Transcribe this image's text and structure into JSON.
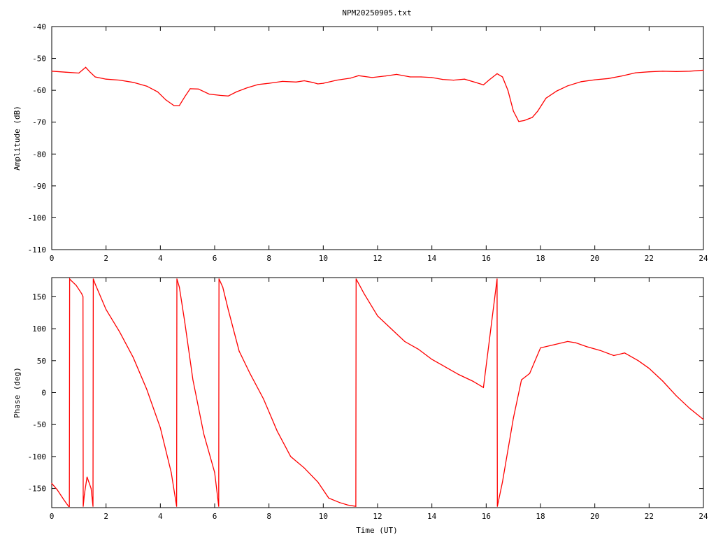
{
  "title": "NPM20250905.txt",
  "colors": {
    "series": "#ff0000",
    "axes": "#000000",
    "background": "#ffffff"
  },
  "chart_data": [
    {
      "type": "line",
      "ylabel": "Amplitude (dB)",
      "xlabel": "",
      "xlim": [
        0,
        24
      ],
      "ylim": [
        -110,
        -40
      ],
      "xticks": [
        "0",
        "2",
        "4",
        "6",
        "8",
        "10",
        "12",
        "14",
        "16",
        "18",
        "20",
        "22",
        "24"
      ],
      "yticks": [
        "-40",
        "-50",
        "-60",
        "-70",
        "-80",
        "-90",
        "-100",
        "-110"
      ],
      "grid": false,
      "series": [
        {
          "x": [
            0,
            0.5,
            1.0,
            1.15,
            1.25,
            1.4,
            1.6,
            2.0,
            2.5,
            3.0,
            3.5,
            3.9,
            4.2,
            4.5,
            4.7,
            4.9,
            5.1,
            5.4,
            5.8,
            6.2,
            6.5,
            6.8,
            7.2,
            7.6,
            8.0,
            8.5,
            9.0,
            9.3,
            9.6,
            9.8,
            10.0,
            10.5,
            11.0,
            11.3,
            11.8,
            12.3,
            12.7,
            13.2,
            13.6,
            14.0,
            14.4,
            14.8,
            15.2,
            15.6,
            15.9,
            16.1,
            16.4,
            16.6,
            16.8,
            17.0,
            17.2,
            17.4,
            17.7,
            17.9,
            18.2,
            18.6,
            19.0,
            19.5,
            20.0,
            20.5,
            21.0,
            21.5,
            22.0,
            22.5,
            23.0,
            23.5,
            24.0
          ],
          "y": [
            -54.0,
            -54.3,
            -54.6,
            -53.5,
            -52.8,
            -54.2,
            -55.8,
            -56.5,
            -56.8,
            -57.5,
            -58.7,
            -60.5,
            -63.0,
            -64.8,
            -64.8,
            -62.0,
            -59.5,
            -59.6,
            -61.2,
            -61.6,
            -61.8,
            -60.5,
            -59.2,
            -58.2,
            -57.8,
            -57.2,
            -57.4,
            -57.0,
            -57.5,
            -58.0,
            -57.8,
            -56.8,
            -56.2,
            -55.4,
            -56.0,
            -55.5,
            -55.0,
            -55.8,
            -55.8,
            -56.0,
            -56.6,
            -56.8,
            -56.5,
            -57.5,
            -58.3,
            -56.8,
            -54.8,
            -55.8,
            -60.0,
            -66.5,
            -69.8,
            -69.5,
            -68.5,
            -66.5,
            -62.5,
            -60.2,
            -58.6,
            -57.3,
            -56.7,
            -56.3,
            -55.5,
            -54.5,
            -54.2,
            -54.0,
            -54.1,
            -54.0,
            -53.7
          ]
        }
      ]
    },
    {
      "type": "line",
      "ylabel": "Phase (deg)",
      "xlabel": "Time (UT)",
      "xlim": [
        0,
        24
      ],
      "ylim": [
        -180,
        180
      ],
      "xticks": [
        "0",
        "2",
        "4",
        "6",
        "8",
        "10",
        "12",
        "14",
        "16",
        "18",
        "20",
        "22",
        "24"
      ],
      "yticks": [
        "150",
        "100",
        "50",
        "0",
        "-50",
        "-100",
        "-150"
      ],
      "grid": false,
      "series": [
        {
          "x": [
            0,
            0.2,
            0.45,
            0.62,
            0.65,
            0.66,
            0.7,
            0.9,
            1.1,
            1.15,
            1.16,
            1.2,
            1.3,
            1.45,
            1.52,
            1.53,
            1.6,
            2.0,
            2.5,
            3.0,
            3.5,
            4.0,
            4.4,
            4.6,
            4.61,
            4.7,
            4.9,
            5.2,
            5.6,
            6.0,
            6.15,
            6.16,
            6.3,
            6.5,
            6.9,
            7.3,
            7.8,
            8.3,
            8.8,
            9.3,
            9.8,
            10.2,
            10.6,
            10.9,
            11.2,
            11.21,
            11.5,
            12.0,
            12.5,
            13.0,
            13.5,
            14.0,
            14.5,
            15.0,
            15.5,
            15.9,
            16.4,
            16.41,
            16.6,
            17.0,
            17.3,
            17.6,
            18.0,
            18.5,
            19.0,
            19.3,
            19.7,
            20.2,
            20.7,
            21.1,
            21.6,
            22.0,
            22.5,
            23.0,
            23.5,
            24.0
          ],
          "y": [
            -142,
            -152,
            -168,
            -178,
            -178,
            178,
            176,
            168,
            155,
            150,
            -178,
            -160,
            -132,
            -150,
            -178,
            178,
            170,
            130,
            95,
            55,
            5,
            -55,
            -125,
            -178,
            178,
            165,
            110,
            20,
            -65,
            -125,
            -178,
            178,
            165,
            130,
            65,
            30,
            -10,
            -60,
            -100,
            -118,
            -140,
            -165,
            -172,
            -176,
            -178,
            178,
            155,
            120,
            100,
            80,
            68,
            52,
            40,
            28,
            18,
            8,
            178,
            -178,
            -140,
            -40,
            20,
            30,
            70,
            75,
            80,
            78,
            72,
            66,
            58,
            62,
            50,
            38,
            18,
            -5,
            -25,
            -42
          ]
        }
      ]
    }
  ]
}
